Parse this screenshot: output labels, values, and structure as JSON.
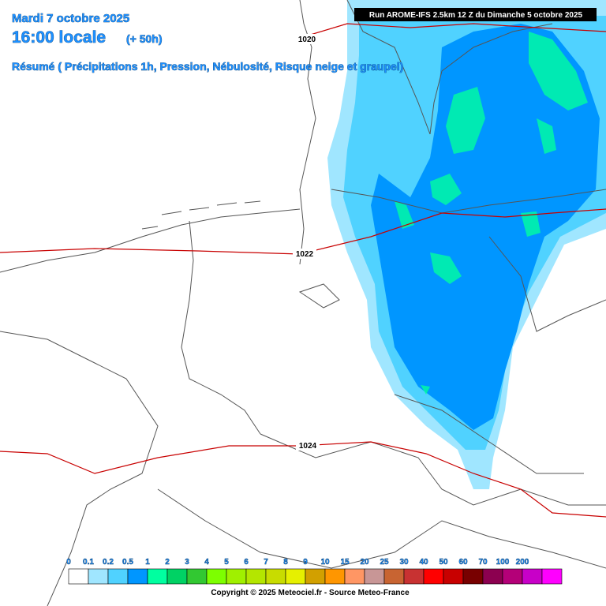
{
  "header": {
    "date": "Mardi 7 octobre 2025",
    "time": "16:00 locale",
    "lead": "(+ 50h)",
    "summary": "Résumé ( Précipitations 1h, Pression, Nébulosité, Risque neige et graupel)"
  },
  "run": "Run AROME-IFS 2.5km 12 Z du Dimanche 5 octobre 2025",
  "isobars": [
    {
      "label": "1020"
    },
    {
      "label": "1022"
    },
    {
      "label": "1024"
    }
  ],
  "legend": {
    "items": [
      {
        "label": "0",
        "color": "#ffffff"
      },
      {
        "label": "0.1",
        "color": "#a0e6ff"
      },
      {
        "label": "0.2",
        "color": "#50d2ff"
      },
      {
        "label": "0.5",
        "color": "#0096ff"
      },
      {
        "label": "1",
        "color": "#00ffa0"
      },
      {
        "label": "2",
        "color": "#00d264"
      },
      {
        "label": "3",
        "color": "#32c832"
      },
      {
        "label": "4",
        "color": "#7dff00"
      },
      {
        "label": "5",
        "color": "#a0f000"
      },
      {
        "label": "6",
        "color": "#b4e600"
      },
      {
        "label": "7",
        "color": "#c8dc00"
      },
      {
        "label": "8",
        "color": "#e6f000"
      },
      {
        "label": "9",
        "color": "#d2a000"
      },
      {
        "label": "10",
        "color": "#ff9600"
      },
      {
        "label": "15",
        "color": "#ff9664"
      },
      {
        "label": "20",
        "color": "#c89696"
      },
      {
        "label": "25",
        "color": "#c86432"
      },
      {
        "label": "30",
        "color": "#c83232"
      },
      {
        "label": "40",
        "color": "#ff0000"
      },
      {
        "label": "50",
        "color": "#c80000"
      },
      {
        "label": "60",
        "color": "#780000"
      },
      {
        "label": "70",
        "color": "#8c0050"
      },
      {
        "label": "100",
        "color": "#b40078"
      },
      {
        "label": "200",
        "color": "#c800c8"
      }
    ],
    "end_color": "#ff00ff"
  },
  "copyright": "Copyright © 2025 Meteociel.fr - Source Meteo-France"
}
